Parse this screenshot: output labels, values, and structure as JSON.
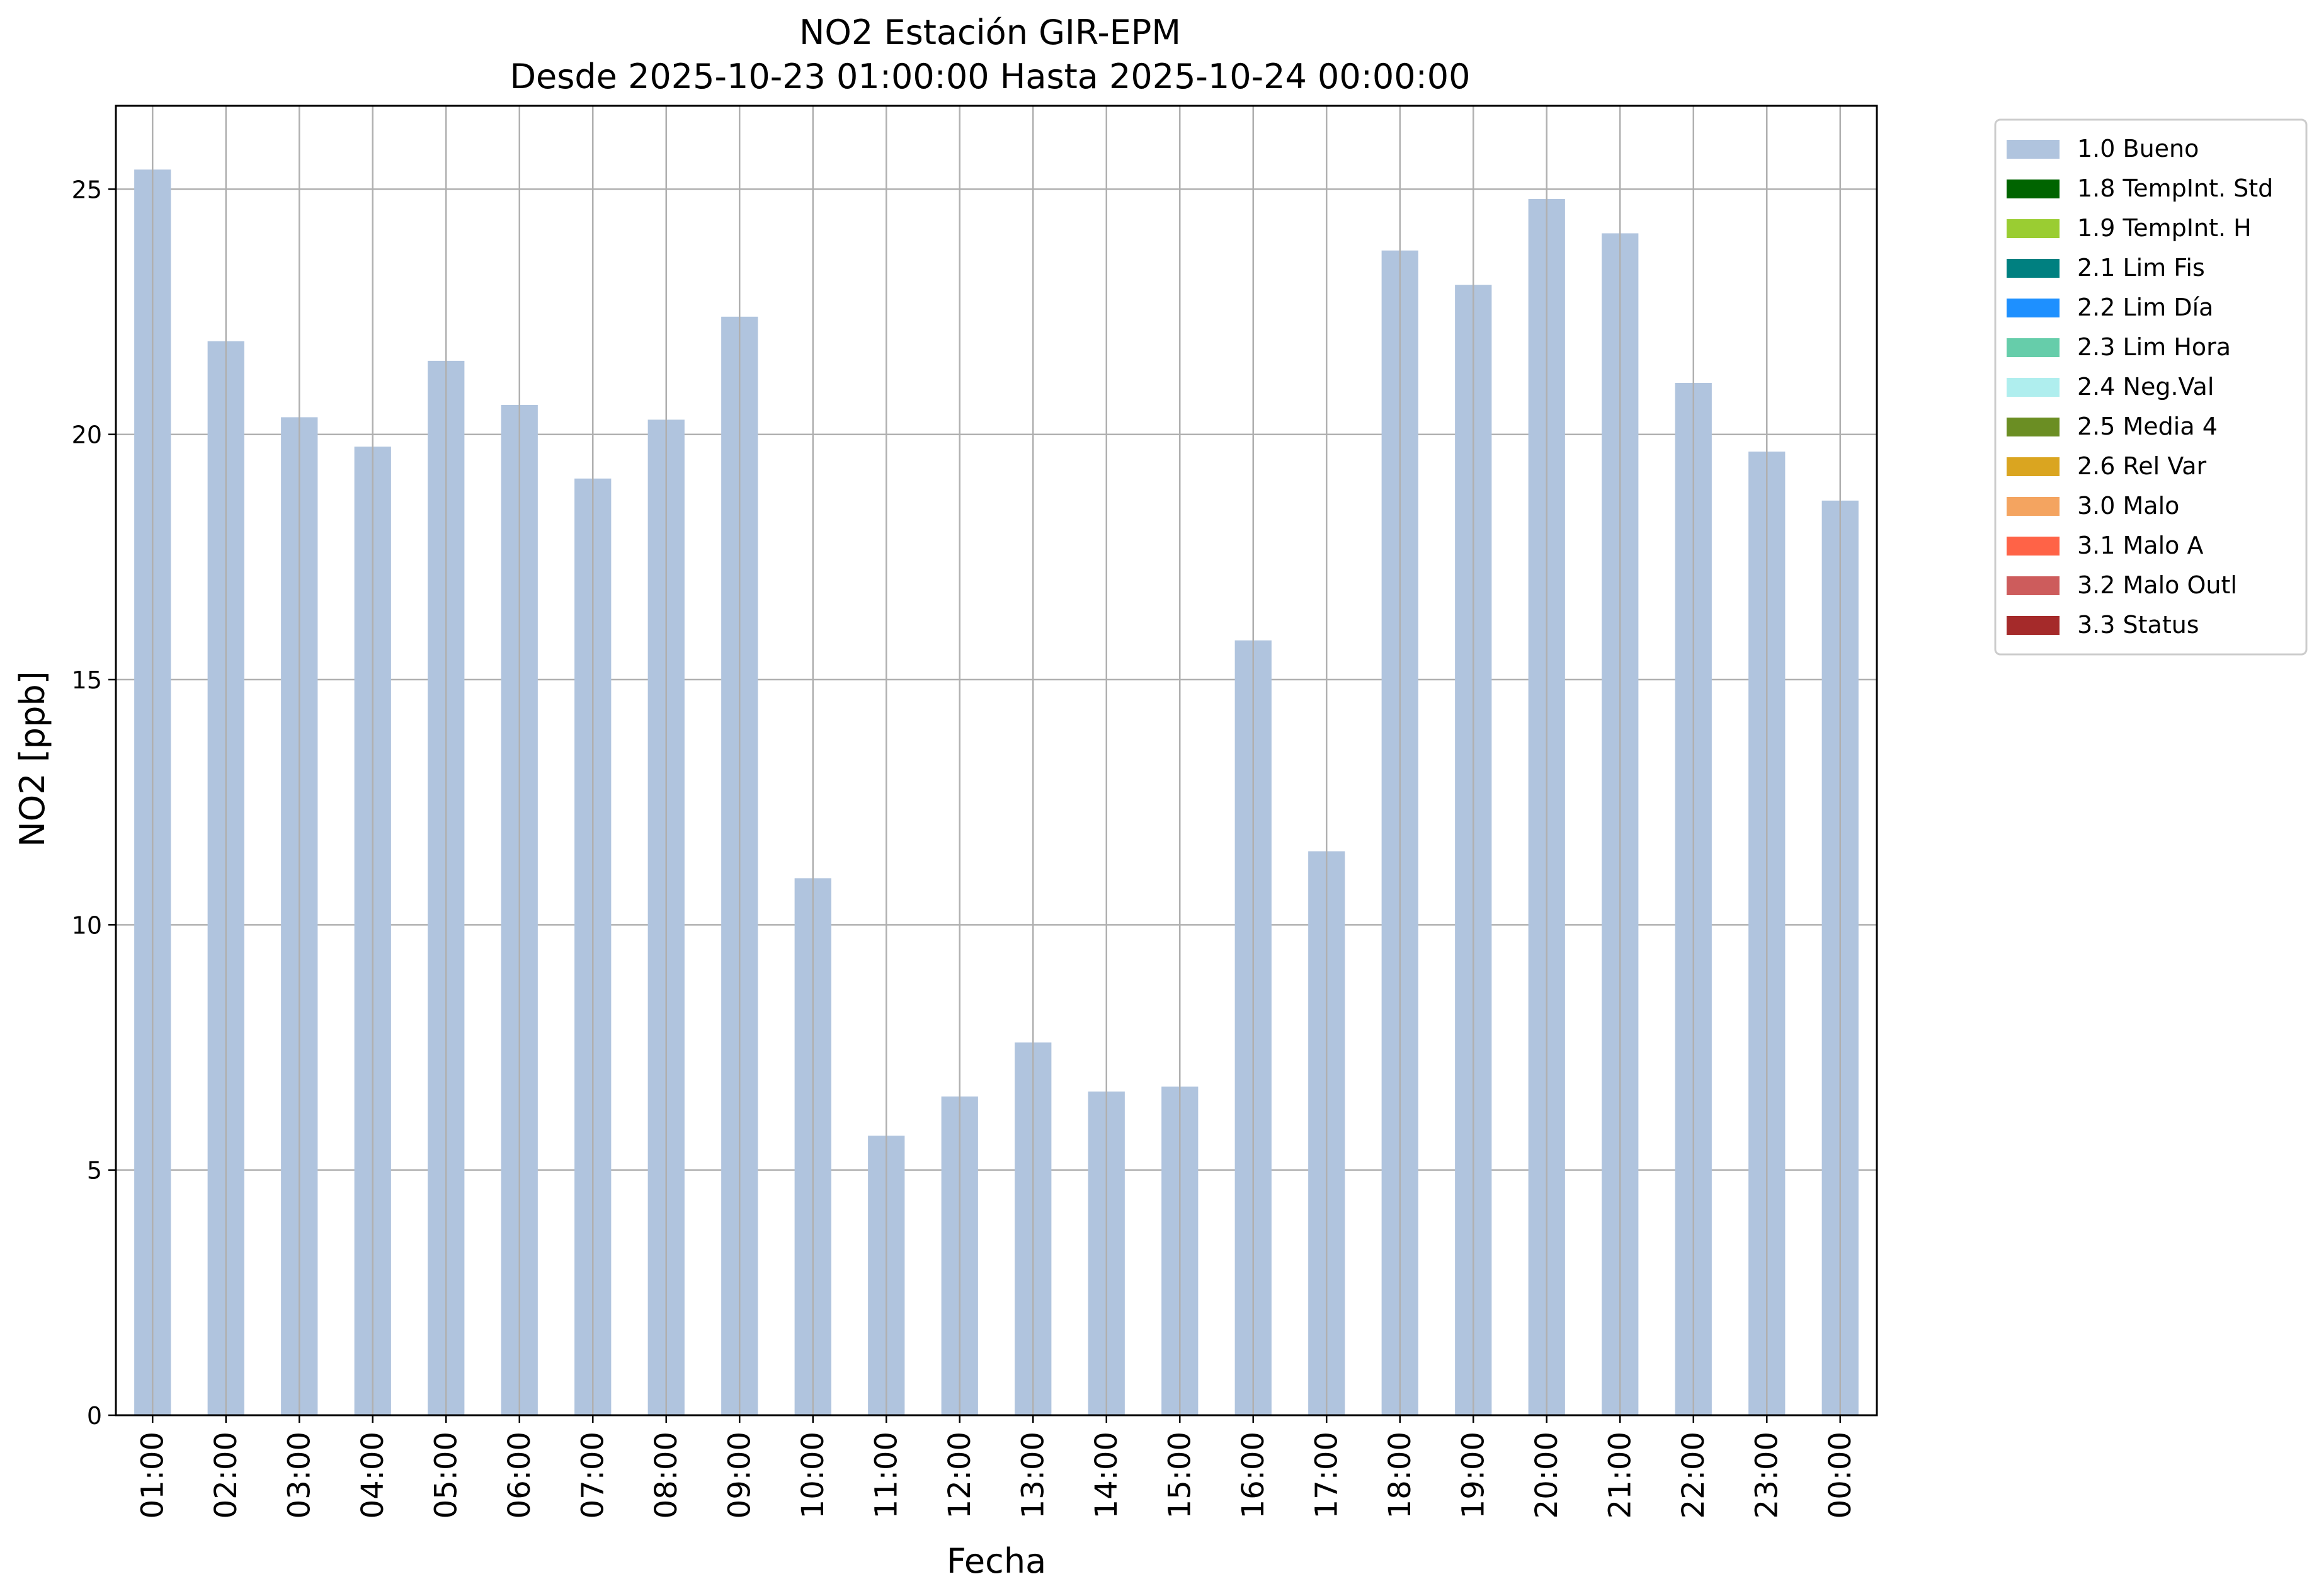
{
  "chart_data": {
    "type": "bar",
    "title": "NO2 Estación GIR-EPM",
    "subtitle": "Desde 2025-10-23 01:00:00 Hasta 2025-10-24 00:00:00",
    "xlabel": "Fecha",
    "ylabel": "NO2 [ppb]",
    "ylim": [
      0,
      26.7
    ],
    "yticks": [
      0,
      5,
      10,
      15,
      20,
      25
    ],
    "grid": true,
    "legend_position": "outside-top-right",
    "categories": [
      "01:00",
      "02:00",
      "03:00",
      "04:00",
      "05:00",
      "06:00",
      "07:00",
      "08:00",
      "09:00",
      "10:00",
      "11:00",
      "12:00",
      "13:00",
      "14:00",
      "15:00",
      "16:00",
      "17:00",
      "18:00",
      "19:00",
      "20:00",
      "21:00",
      "22:00",
      "23:00",
      "00:00"
    ],
    "series": [
      {
        "name": "1.0 Bueno",
        "color": "#b0c4de",
        "values": [
          25.4,
          21.9,
          20.35,
          19.75,
          21.5,
          20.6,
          19.1,
          20.3,
          22.4,
          10.95,
          5.7,
          6.5,
          7.6,
          6.6,
          6.7,
          15.8,
          11.5,
          23.75,
          23.05,
          24.8,
          24.1,
          21.05,
          19.65,
          18.65
        ]
      }
    ],
    "legend": [
      {
        "label": "1.0 Bueno",
        "color": "#b0c4de"
      },
      {
        "label": "1.8 TempInt. Std",
        "color": "#006400"
      },
      {
        "label": "1.9 TempInt. H",
        "color": "#9acd32"
      },
      {
        "label": "2.1 Lim Fis",
        "color": "#008080"
      },
      {
        "label": "2.2 Lim Día",
        "color": "#1e90ff"
      },
      {
        "label": "2.3 Lim Hora",
        "color": "#66cdaa"
      },
      {
        "label": "2.4 Neg.Val",
        "color": "#afeeee"
      },
      {
        "label": "2.5 Media 4",
        "color": "#6b8e23"
      },
      {
        "label": "2.6 Rel Var",
        "color": "#daa520"
      },
      {
        "label": "3.0 Malo",
        "color": "#f4a460"
      },
      {
        "label": "3.1 Malo A",
        "color": "#ff6347"
      },
      {
        "label": "3.2 Malo Outl",
        "color": "#cd5c5c"
      },
      {
        "label": "3.3 Status",
        "color": "#a52a2a"
      }
    ]
  }
}
